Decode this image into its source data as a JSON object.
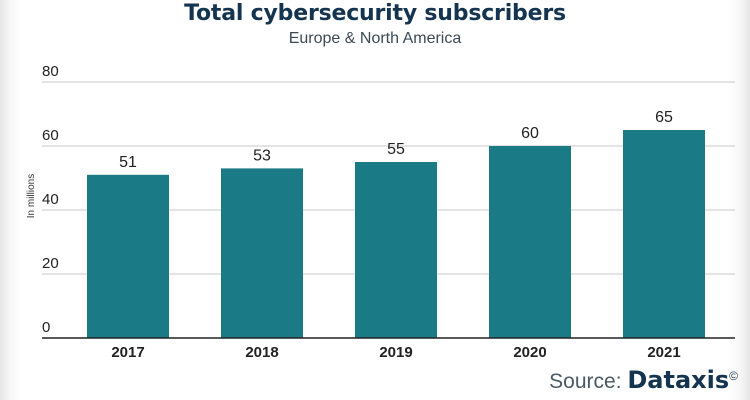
{
  "chart_data": {
    "type": "bar",
    "title": "Total cybersecurity subscribers",
    "subtitle": "Europe & North America",
    "ylabel": "In millions",
    "xlabel": "",
    "categories": [
      "2017",
      "2018",
      "2019",
      "2020",
      "2021"
    ],
    "values": [
      51,
      53,
      55,
      60,
      65
    ],
    "data_labels": [
      "51",
      "53",
      "55",
      "60",
      "65"
    ],
    "yticks": [
      "0",
      "20",
      "40",
      "60",
      "80"
    ],
    "ylim": [
      0,
      80
    ],
    "grid": true,
    "legend": "none"
  },
  "colors": {
    "bar": "#1a7a85",
    "title": "#14344f",
    "grid": "#c9c9c9",
    "axis": "#222222"
  },
  "source": {
    "label": "Source:",
    "brand": "Dataxis",
    "mark": "©"
  }
}
